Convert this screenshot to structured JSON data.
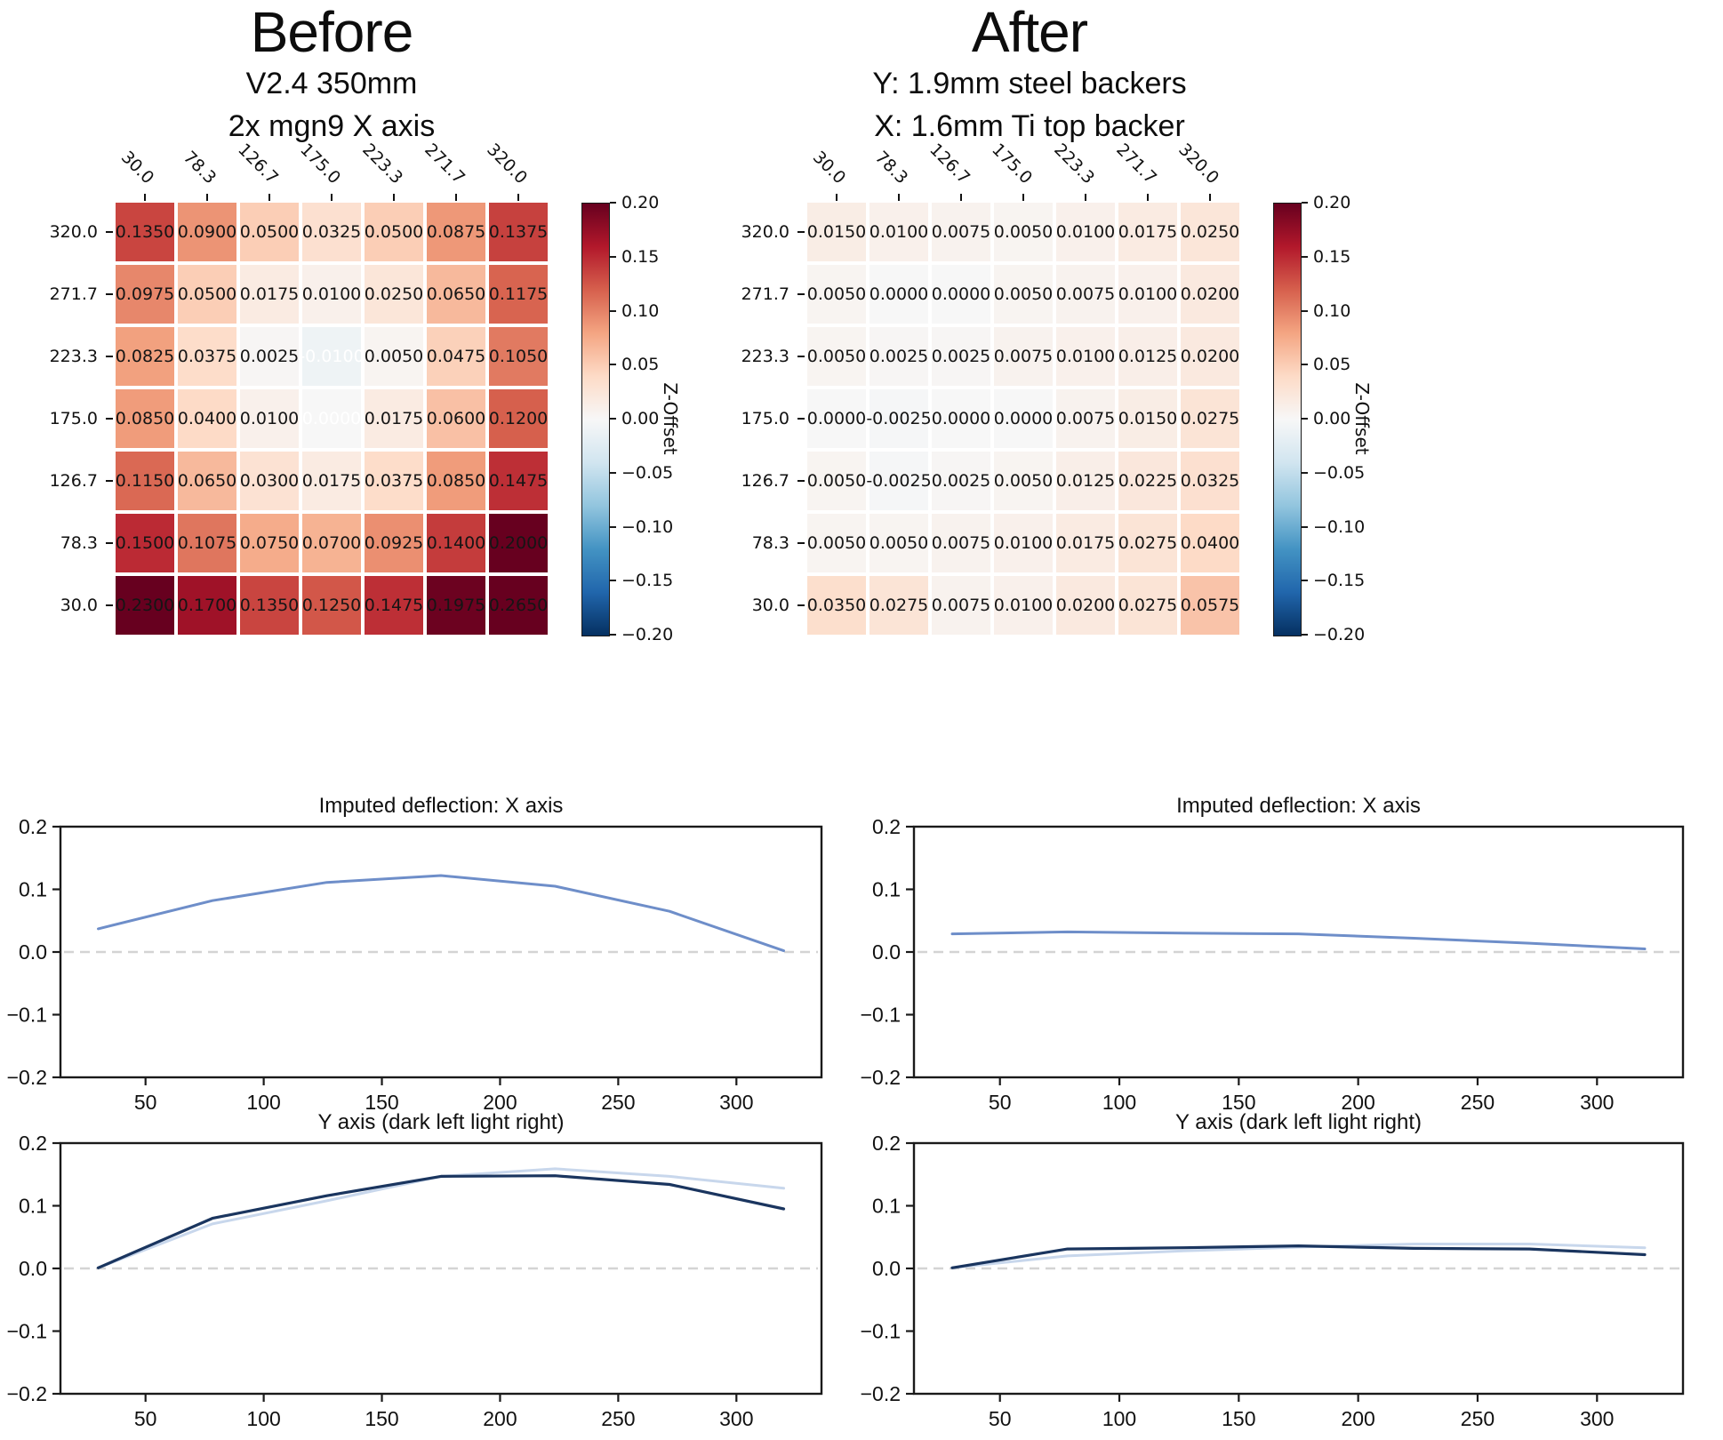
{
  "panels": {
    "before": {
      "title": "Before",
      "subtitle1": "V2.4 350mm",
      "subtitle2": "2x mgn9 X axis"
    },
    "after": {
      "title": "After",
      "subtitle1": "Y: 1.9mm steel backers",
      "subtitle2": "X: 1.6mm Ti top backer"
    }
  },
  "colorbar": {
    "label": "Z-Offset",
    "tick_labels": [
      "0.20",
      "0.15",
      "0.10",
      "0.05",
      "0.00",
      "−0.05",
      "−0.10",
      "−0.15",
      "−0.20"
    ],
    "vmin": -0.2,
    "vmax": 0.2,
    "colormap": "RdBu_r",
    "stops_low_to_high": [
      "#053061",
      "#2166ac",
      "#4393c3",
      "#92c5de",
      "#d1e5f0",
      "#f7f7f7",
      "#fddbc7",
      "#f4a582",
      "#d6604d",
      "#b2182b",
      "#67001f"
    ]
  },
  "colors": {
    "medium_blue_line": "#6e8ec9",
    "dark_navy_line": "#1a355f",
    "light_blue_line": "#c8d7ec",
    "zero_dash_line": "#d4d4d4",
    "annotation_text": "#151515",
    "annotation_text_alt": "#ffffff",
    "axis_spine": "#1a1a1a"
  },
  "chart_data": [
    {
      "id": "heatmap-before",
      "type": "heatmap",
      "panel": "Before",
      "x_tick_labels": [
        "30.0",
        "78.3",
        "126.7",
        "175.0",
        "223.3",
        "271.7",
        "320.0"
      ],
      "y_tick_labels": [
        "320.0",
        "271.7",
        "223.3",
        "175.0",
        "126.7",
        "78.3",
        "30.0"
      ],
      "x_values": [
        30.0,
        78.3,
        126.7,
        175.0,
        223.3,
        271.7,
        320.0
      ],
      "y_values": [
        320.0,
        271.7,
        223.3,
        175.0,
        126.7,
        78.3,
        30.0
      ],
      "vmin": -0.2,
      "vmax": 0.2,
      "colormap": "RdBu_r",
      "colorbar_label": "Z-Offset",
      "values": [
        [
          0.135,
          0.09,
          0.05,
          0.0325,
          0.05,
          0.0875,
          0.1375
        ],
        [
          0.0975,
          0.05,
          0.0175,
          0.01,
          0.025,
          0.065,
          0.1175
        ],
        [
          0.0825,
          0.0375,
          0.0025,
          -0.01,
          0.005,
          0.0475,
          0.105
        ],
        [
          0.085,
          0.04,
          0.01,
          0.0,
          0.0175,
          0.06,
          0.12
        ],
        [
          0.115,
          0.065,
          0.03,
          0.0175,
          0.0375,
          0.085,
          0.1475
        ],
        [
          0.15,
          0.1075,
          0.075,
          0.07,
          0.0925,
          0.14,
          0.2
        ],
        [
          0.23,
          0.17,
          0.135,
          0.125,
          0.1475,
          0.1975,
          0.265
        ]
      ],
      "white_text_cells": [
        [
          2,
          3
        ],
        [
          3,
          3
        ]
      ]
    },
    {
      "id": "heatmap-after",
      "type": "heatmap",
      "panel": "After",
      "x_tick_labels": [
        "30.0",
        "78.3",
        "126.7",
        "175.0",
        "223.3",
        "271.7",
        "320.0"
      ],
      "y_tick_labels": [
        "320.0",
        "271.7",
        "223.3",
        "175.0",
        "126.7",
        "78.3",
        "30.0"
      ],
      "x_values": [
        30.0,
        78.3,
        126.7,
        175.0,
        223.3,
        271.7,
        320.0
      ],
      "y_values": [
        320.0,
        271.7,
        223.3,
        175.0,
        126.7,
        78.3,
        30.0
      ],
      "vmin": -0.2,
      "vmax": 0.2,
      "colormap": "RdBu_r",
      "colorbar_label": "Z-Offset",
      "values": [
        [
          0.015,
          0.01,
          0.0075,
          0.005,
          0.01,
          0.0175,
          0.025
        ],
        [
          0.005,
          0.0,
          0.0,
          0.005,
          0.0075,
          0.01,
          0.02
        ],
        [
          0.005,
          0.0025,
          0.0025,
          0.0075,
          0.01,
          0.0125,
          0.02
        ],
        [
          0.0,
          -0.0025,
          0.0,
          0.0,
          0.0075,
          0.015,
          0.0275
        ],
        [
          0.005,
          -0.0025,
          0.0025,
          0.005,
          0.0125,
          0.0225,
          0.0325
        ],
        [
          0.005,
          0.005,
          0.0075,
          0.01,
          0.0175,
          0.0275,
          0.04
        ],
        [
          0.035,
          0.0275,
          0.0075,
          0.01,
          0.02,
          0.0275,
          0.0575
        ]
      ],
      "white_text_cells": []
    },
    {
      "id": "line-before-x",
      "type": "line",
      "panel": "Before",
      "title": "Imputed deflection: X axis",
      "x": [
        30,
        78.3,
        126.7,
        175,
        223.3,
        271.7,
        320
      ],
      "series": [
        {
          "name": "imputed-x-deflection",
          "color": "#6e8ec9",
          "width": 3,
          "values": [
            0.037,
            0.082,
            0.111,
            0.122,
            0.105,
            0.065,
            0.002
          ]
        }
      ],
      "ylim": [
        -0.2,
        0.2
      ],
      "ytick_values": [
        0.2,
        0.1,
        0.0,
        -0.1,
        -0.2
      ],
      "ytick_labels": [
        "0.2",
        "0.1",
        "0.0",
        "−0.1",
        "−0.2"
      ],
      "xtick_values": [
        50,
        100,
        150,
        200,
        250,
        300
      ],
      "xtick_labels": [
        "50",
        "100",
        "150",
        "200",
        "250",
        "300"
      ],
      "zero_line_dashed": true
    },
    {
      "id": "line-before-y",
      "type": "line",
      "panel": "Before",
      "title": "Y axis (dark left light right)",
      "x": [
        30,
        78.3,
        126.7,
        175,
        223.3,
        271.7,
        320
      ],
      "series": [
        {
          "name": "light-right",
          "color": "#c8d7ec",
          "width": 3,
          "values": [
            0.001,
            0.071,
            0.108,
            0.147,
            0.159,
            0.147,
            0.128
          ]
        },
        {
          "name": "dark-left",
          "color": "#1a355f",
          "width": 3.2,
          "values": [
            0.001,
            0.08,
            0.116,
            0.147,
            0.148,
            0.134,
            0.095
          ]
        }
      ],
      "ylim": [
        -0.2,
        0.2
      ],
      "ytick_values": [
        0.2,
        0.1,
        0.0,
        -0.1,
        -0.2
      ],
      "ytick_labels": [
        "0.2",
        "0.1",
        "0.0",
        "−0.1",
        "−0.2"
      ],
      "xtick_values": [
        50,
        100,
        150,
        200,
        250,
        300
      ],
      "xtick_labels": [
        "50",
        "100",
        "150",
        "200",
        "250",
        "300"
      ],
      "zero_line_dashed": true
    },
    {
      "id": "line-after-x",
      "type": "line",
      "panel": "After",
      "title": "Imputed deflection: X axis",
      "x": [
        30,
        78.3,
        126.7,
        175,
        223.3,
        271.7,
        320
      ],
      "series": [
        {
          "name": "imputed-x-deflection",
          "color": "#6e8ec9",
          "width": 3,
          "values": [
            0.029,
            0.032,
            0.03,
            0.029,
            0.022,
            0.014,
            0.005
          ]
        }
      ],
      "ylim": [
        -0.2,
        0.2
      ],
      "ytick_values": [
        0.2,
        0.1,
        0.0,
        -0.1,
        -0.2
      ],
      "ytick_labels": [
        "0.2",
        "0.1",
        "0.0",
        "−0.1",
        "−0.2"
      ],
      "xtick_values": [
        50,
        100,
        150,
        200,
        250,
        300
      ],
      "xtick_labels": [
        "50",
        "100",
        "150",
        "200",
        "250",
        "300"
      ],
      "zero_line_dashed": true
    },
    {
      "id": "line-after-y",
      "type": "line",
      "panel": "After",
      "title": "Y axis (dark left light right)",
      "x": [
        30,
        78.3,
        126.7,
        175,
        223.3,
        271.7,
        320
      ],
      "series": [
        {
          "name": "light-right",
          "color": "#c8d7ec",
          "width": 3,
          "values": [
            0.001,
            0.02,
            0.028,
            0.034,
            0.039,
            0.039,
            0.033
          ]
        },
        {
          "name": "dark-left",
          "color": "#1a355f",
          "width": 3.2,
          "values": [
            0.001,
            0.031,
            0.033,
            0.036,
            0.032,
            0.031,
            0.022
          ]
        }
      ],
      "ylim": [
        -0.2,
        0.2
      ],
      "ytick_values": [
        0.2,
        0.1,
        0.0,
        -0.1,
        -0.2
      ],
      "ytick_labels": [
        "0.2",
        "0.1",
        "0.0",
        "−0.1",
        "−0.2"
      ],
      "xtick_values": [
        50,
        100,
        150,
        200,
        250,
        300
      ],
      "xtick_labels": [
        "50",
        "100",
        "150",
        "200",
        "250",
        "300"
      ],
      "zero_line_dashed": true
    }
  ]
}
